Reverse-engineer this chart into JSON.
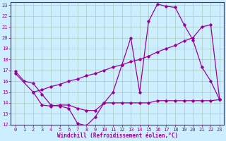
{
  "xlabel": "Windchill (Refroidissement éolien,°C)",
  "bg_color": "#cceeff",
  "line_color": "#990099",
  "grid_color": "#aaccbb",
  "xlim": [
    -0.5,
    23.5
  ],
  "ylim": [
    12,
    23.3
  ],
  "yticks": [
    12,
    13,
    14,
    15,
    16,
    17,
    18,
    19,
    20,
    21,
    22,
    23
  ],
  "xticks": [
    0,
    1,
    2,
    3,
    4,
    5,
    6,
    7,
    8,
    9,
    10,
    11,
    12,
    13,
    14,
    15,
    16,
    17,
    18,
    19,
    20,
    21,
    22,
    23
  ],
  "line1_x": [
    0,
    1,
    2,
    3,
    4,
    5,
    6,
    7,
    8,
    9,
    10,
    11,
    12,
    13,
    14,
    15,
    16,
    17,
    18,
    19,
    20,
    21,
    22,
    23
  ],
  "line1_y": [
    16.9,
    16.0,
    15.8,
    14.8,
    13.8,
    13.7,
    13.5,
    12.1,
    11.9,
    12.7,
    14.0,
    15.0,
    17.5,
    20.0,
    15.0,
    21.5,
    23.1,
    22.9,
    22.8,
    21.2,
    19.8,
    17.3,
    16.0,
    14.3
  ],
  "line2_x": [
    0,
    2,
    3,
    4,
    5,
    6,
    7,
    8,
    9,
    10,
    11,
    12,
    13,
    14,
    15,
    16,
    17,
    18,
    19,
    20,
    21,
    22,
    23
  ],
  "line2_y": [
    16.7,
    15.0,
    15.2,
    15.5,
    15.7,
    16.0,
    16.2,
    16.5,
    16.7,
    17.0,
    17.3,
    17.5,
    17.8,
    18.0,
    18.3,
    18.7,
    19.0,
    19.3,
    19.7,
    20.0,
    21.0,
    21.2,
    14.3
  ],
  "line3_x": [
    2,
    3,
    4,
    5,
    6,
    7,
    8,
    9,
    10,
    11,
    12,
    13,
    14,
    15,
    16,
    17,
    18,
    19,
    20,
    21,
    22,
    23
  ],
  "line3_y": [
    15.0,
    13.8,
    13.7,
    13.8,
    13.8,
    13.5,
    13.3,
    13.3,
    14.0,
    14.0,
    14.0,
    14.0,
    14.0,
    14.0,
    14.2,
    14.2,
    14.2,
    14.2,
    14.2,
    14.2,
    14.2,
    14.3
  ]
}
